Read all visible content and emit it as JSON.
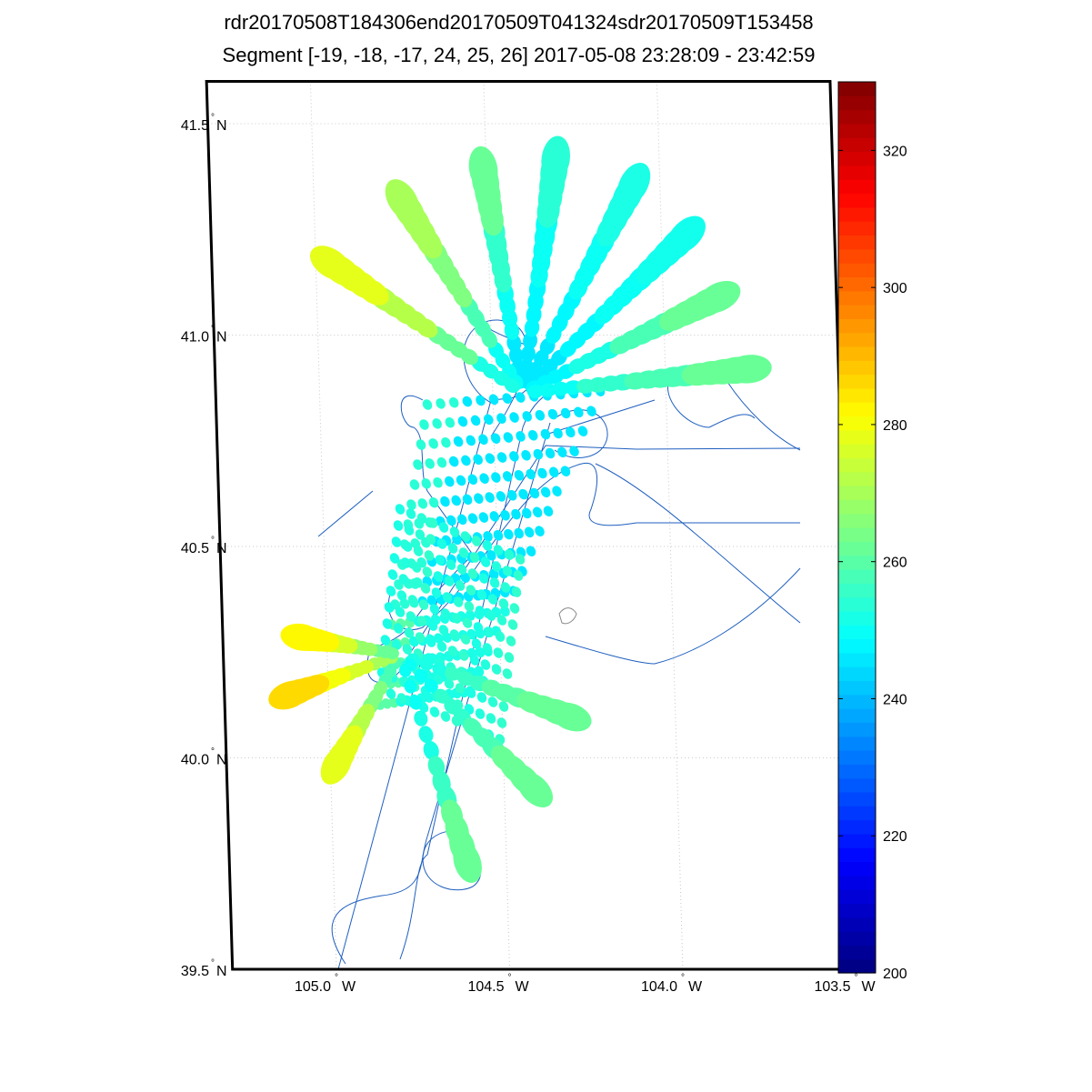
{
  "title_line1": "rdr20170508T184306end20170509T041324sdr20170509T153458",
  "title_line2": "Segment [-19, -18, -17, 24, 25, 26] 2017-05-08 23:28:09 - 23:42:59",
  "map": {
    "lon_range": [
      -105.3,
      -103.5
    ],
    "lat_range": [
      39.5,
      41.6
    ],
    "lat_ticks": [
      {
        "value": 41.5,
        "num": "41.5",
        "hemi": "N"
      },
      {
        "value": 41.0,
        "num": "41.0",
        "hemi": "N"
      },
      {
        "value": 40.5,
        "num": "40.5",
        "hemi": "N"
      },
      {
        "value": 40.0,
        "num": "40.0",
        "hemi": "N"
      },
      {
        "value": 39.5,
        "num": "39.5",
        "hemi": "N"
      }
    ],
    "lon_ticks": [
      {
        "value": -105.0,
        "num": "105.0",
        "hemi": "W"
      },
      {
        "value": -104.5,
        "num": "104.5",
        "hemi": "W"
      },
      {
        "value": -104.0,
        "num": "104.0",
        "hemi": "W"
      },
      {
        "value": -103.5,
        "num": "103.5",
        "hemi": "W"
      }
    ],
    "grid": true,
    "track_color": "#1f5fbf",
    "footprint_colormap": "jet"
  },
  "colorbar": {
    "min": 200,
    "max": 330,
    "ticks": [
      "200",
      "220",
      "240",
      "260",
      "280",
      "300",
      "320"
    ],
    "colormap": "jet"
  }
}
